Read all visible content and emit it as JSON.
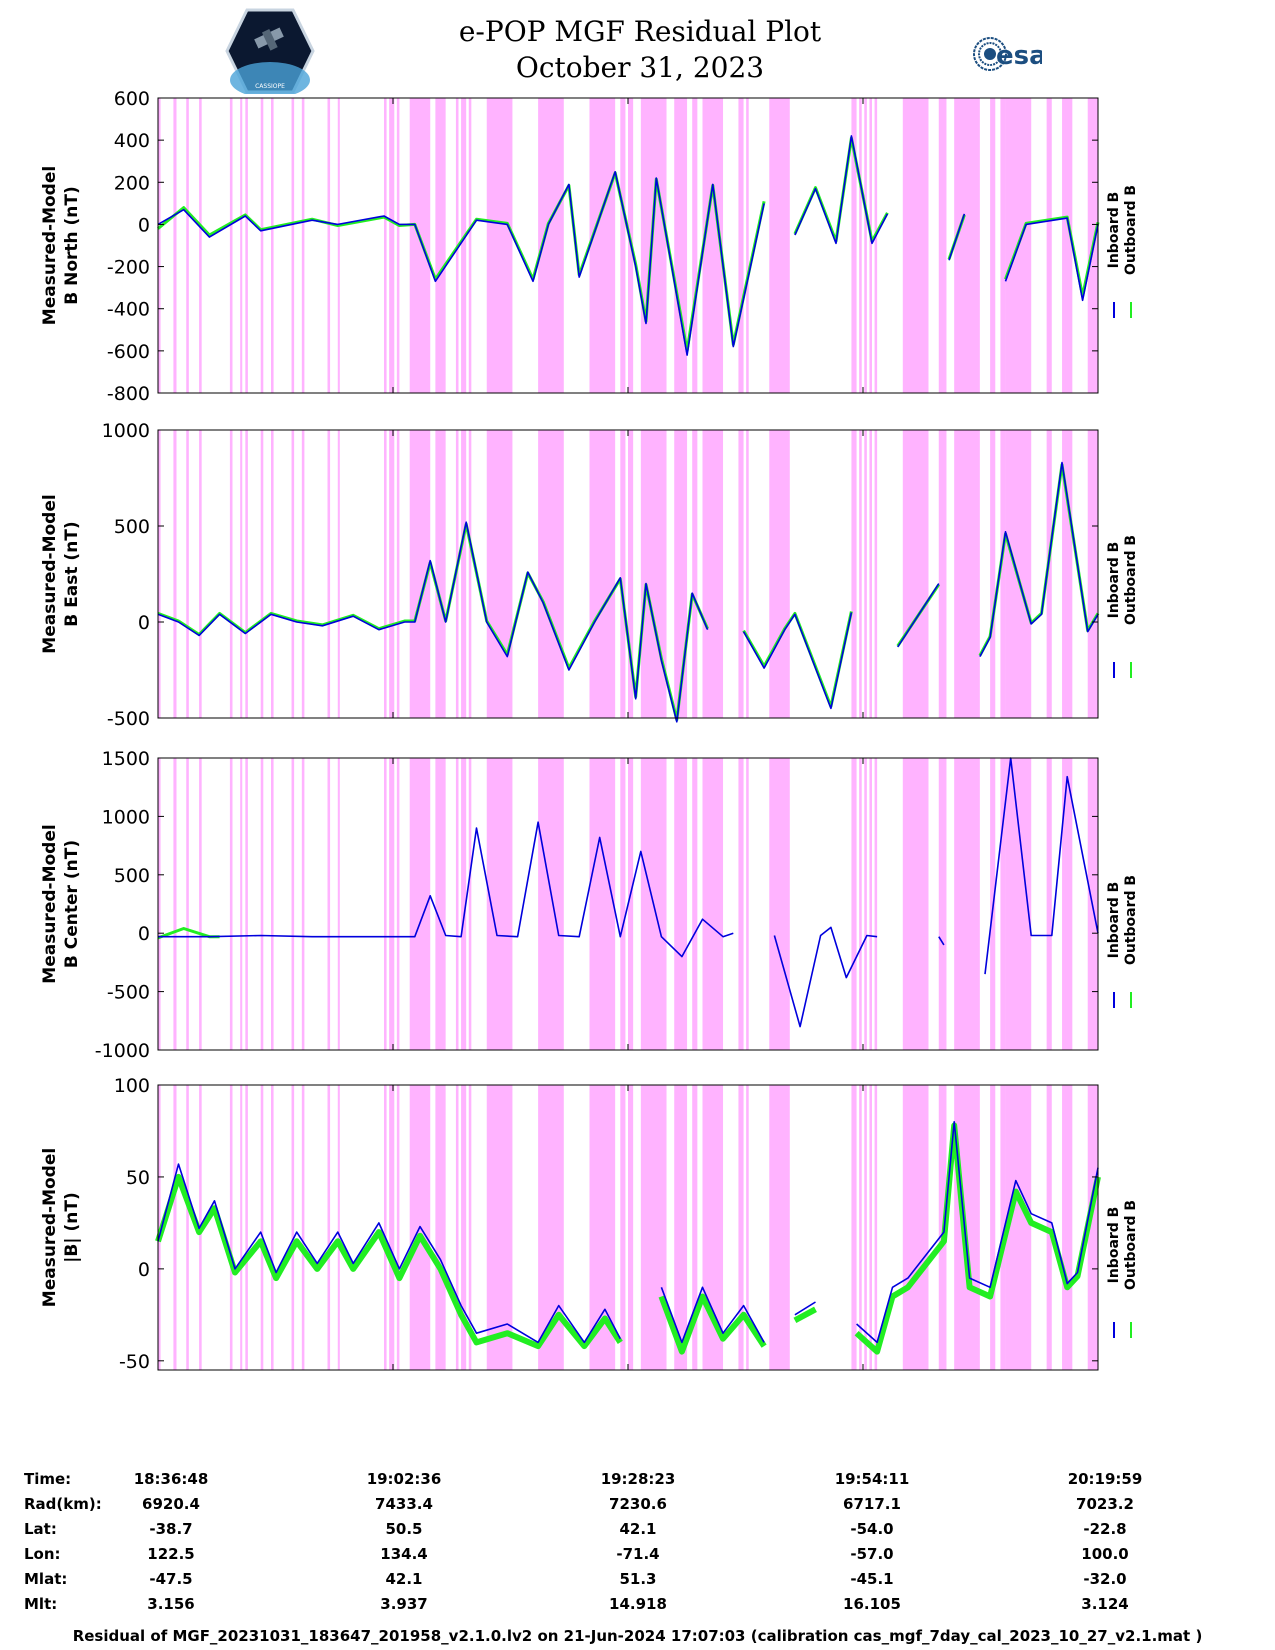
{
  "header": {
    "title": "e-POP MGF Residual Plot",
    "date": "October 31, 2023",
    "logo_left": "CASSIOPE",
    "logo_right": "esa"
  },
  "colors": {
    "inboard": "#0000dd",
    "outboard": "#22ee22",
    "shade": "#ffb3ff"
  },
  "chart_data": [
    {
      "type": "line",
      "ylabel": [
        "Measured-Model",
        "B North (nT)"
      ],
      "ylim": [
        -800,
        600
      ],
      "yticks": [
        -800,
        -600,
        -400,
        -200,
        0,
        200,
        400,
        600
      ],
      "legend": [
        "Inboard B",
        "Outboard B"
      ],
      "series": [
        {
          "name": "Inboard B",
          "x": [
            0,
            5,
            10,
            17,
            20,
            30,
            35,
            44,
            47,
            50,
            54,
            62,
            68,
            73,
            76,
            80,
            82,
            89,
            93,
            95,
            97,
            103,
            108,
            112,
            118,
            122,
            124,
            128,
            132,
            135,
            139,
            142,
            144,
            154,
            157,
            160,
            165,
            169,
            177,
            180,
            183
          ],
          "y": [
            0,
            70,
            -60,
            40,
            -30,
            20,
            0,
            40,
            0,
            0,
            -270,
            20,
            0,
            -270,
            0,
            190,
            -250,
            250,
            -200,
            -470,
            220,
            -620,
            190,
            -580,
            100,
            null,
            -50,
            170,
            -90,
            420,
            -90,
            50,
            null,
            -170,
            50,
            null,
            -270,
            0,
            30,
            -360,
            0
          ]
        },
        {
          "name": "Outboard B",
          "x": [
            0,
            5,
            10,
            17,
            20,
            30,
            35,
            44,
            47,
            50,
            54,
            62,
            68,
            73,
            76,
            80,
            82,
            89,
            93,
            95,
            97,
            103,
            108,
            112,
            118,
            122,
            124,
            128,
            132,
            135,
            139,
            142,
            144,
            154,
            157,
            160,
            165,
            169,
            177,
            180,
            183
          ],
          "y": [
            -20,
            80,
            -50,
            45,
            -25,
            25,
            -5,
            35,
            -5,
            0,
            -260,
            25,
            5,
            -260,
            5,
            185,
            -240,
            245,
            -190,
            -460,
            215,
            -600,
            185,
            -570,
            110,
            null,
            -45,
            175,
            -80,
            410,
            -80,
            55,
            null,
            -165,
            45,
            null,
            -260,
            5,
            35,
            -340,
            10
          ]
        }
      ]
    },
    {
      "type": "line",
      "ylabel": [
        "Measured-Model",
        "B East (nT)"
      ],
      "ylim": [
        -500,
        1000
      ],
      "yticks": [
        -500,
        0,
        500,
        1000
      ],
      "legend": [
        "Inboard B",
        "Outboard B"
      ],
      "series": [
        {
          "name": "Inboard B",
          "x": [
            0,
            4,
            8,
            12,
            17,
            22,
            27,
            32,
            38,
            43,
            48,
            50,
            53,
            56,
            60,
            64,
            68,
            72,
            75,
            80,
            85,
            90,
            93,
            95,
            98,
            101,
            104,
            107,
            109,
            114,
            118,
            122,
            124,
            131,
            135,
            140,
            144,
            152,
            157,
            160,
            162,
            165,
            170,
            172,
            176,
            181,
            183
          ],
          "y": [
            40,
            0,
            -70,
            40,
            -60,
            40,
            0,
            -20,
            30,
            -40,
            0,
            0,
            320,
            0,
            520,
            0,
            -180,
            260,
            100,
            -250,
            0,
            230,
            -400,
            200,
            -200,
            -520,
            150,
            -40,
            null,
            -50,
            -240,
            -40,
            40,
            -450,
            50,
            null,
            -130,
            200,
            null,
            -180,
            -80,
            470,
            -10,
            40,
            830,
            -50,
            40
          ]
        },
        {
          "name": "Outboard B",
          "x": [
            0,
            4,
            8,
            12,
            17,
            22,
            27,
            32,
            38,
            43,
            48,
            50,
            53,
            56,
            60,
            64,
            68,
            72,
            75,
            80,
            85,
            90,
            93,
            95,
            98,
            101,
            104,
            107,
            109,
            114,
            118,
            122,
            124,
            131,
            135,
            140,
            144,
            152,
            157,
            160,
            162,
            165,
            170,
            172,
            176,
            181,
            183
          ],
          "y": [
            45,
            5,
            -65,
            45,
            -55,
            45,
            5,
            -15,
            35,
            -35,
            5,
            5,
            310,
            5,
            510,
            5,
            -170,
            255,
            105,
            -240,
            5,
            225,
            -390,
            195,
            -190,
            -510,
            145,
            -35,
            null,
            -45,
            -230,
            -35,
            45,
            -440,
            55,
            null,
            -125,
            195,
            null,
            -175,
            -75,
            460,
            -5,
            45,
            820,
            -45,
            45
          ]
        }
      ]
    },
    {
      "type": "line",
      "ylabel": [
        "Measured-Model",
        "B Center (nT)"
      ],
      "ylim": [
        -1000,
        1500
      ],
      "yticks": [
        -1000,
        -500,
        0,
        500,
        1000,
        1500
      ],
      "legend": [
        "Inboard B",
        "Outboard B"
      ],
      "series": [
        {
          "name": "Inboard B",
          "x": [
            0,
            10,
            20,
            30,
            40,
            46,
            50,
            53,
            56,
            59,
            62,
            66,
            70,
            74,
            78,
            82,
            86,
            90,
            94,
            98,
            102,
            106,
            110,
            112,
            115,
            120,
            125,
            129,
            131,
            134,
            138,
            140,
            146,
            152,
            153,
            156,
            161,
            166,
            170,
            174,
            177,
            183
          ],
          "y": [
            -30,
            -30,
            -20,
            -30,
            -30,
            -30,
            -30,
            320,
            -20,
            -30,
            900,
            -20,
            -30,
            950,
            -20,
            -30,
            820,
            -30,
            700,
            -30,
            -200,
            120,
            -30,
            0,
            null,
            -20,
            -800,
            -20,
            50,
            -380,
            -20,
            -30,
            null,
            -30,
            -100,
            null,
            -350,
            1500,
            -20,
            -20,
            1340,
            0
          ]
        },
        {
          "name": "Outboard B",
          "x": [
            0,
            5,
            10,
            12
          ],
          "y": [
            -40,
            40,
            -30,
            -30
          ]
        }
      ]
    },
    {
      "type": "line",
      "ylabel": [
        "Measured-Model",
        "|B| (nT)"
      ],
      "ylim": [
        -55,
        100
      ],
      "yticks": [
        -50,
        0,
        50,
        100
      ],
      "legend": [
        "Inboard B",
        "Outboard B"
      ],
      "series": [
        {
          "name": "Inboard B",
          "x": [
            0,
            4,
            8,
            11,
            15,
            20,
            23,
            27,
            31,
            35,
            38,
            43,
            47,
            51,
            55,
            59,
            62,
            68,
            74,
            78,
            83,
            87,
            90,
            94,
            98,
            102,
            106,
            110,
            114,
            118,
            122,
            124,
            128,
            132,
            136,
            140,
            143,
            146,
            153,
            155,
            158,
            162,
            167,
            170,
            174,
            177,
            179,
            183
          ],
          "y": [
            15,
            57,
            22,
            37,
            0,
            20,
            -2,
            20,
            3,
            20,
            3,
            25,
            0,
            23,
            5,
            -20,
            -35,
            -30,
            -40,
            -20,
            -40,
            -22,
            -38,
            null,
            -10,
            -40,
            -10,
            -35,
            -20,
            -40,
            null,
            -25,
            -18,
            null,
            -30,
            -40,
            -10,
            -5,
            20,
            80,
            -5,
            -10,
            48,
            30,
            25,
            -8,
            -2,
            55
          ]
        },
        {
          "name": "Outboard B",
          "x": [
            0,
            4,
            8,
            11,
            15,
            20,
            23,
            27,
            31,
            35,
            38,
            43,
            47,
            51,
            55,
            59,
            62,
            68,
            74,
            78,
            83,
            87,
            90,
            94,
            98,
            102,
            106,
            110,
            114,
            118,
            122,
            124,
            128,
            132,
            136,
            140,
            143,
            146,
            153,
            155,
            158,
            162,
            167,
            170,
            174,
            177,
            179,
            183
          ],
          "y": [
            15,
            50,
            20,
            33,
            -2,
            15,
            -5,
            15,
            0,
            15,
            0,
            20,
            -5,
            18,
            0,
            -25,
            -40,
            -35,
            -42,
            -25,
            -42,
            -27,
            -40,
            null,
            -15,
            -45,
            -15,
            -38,
            -25,
            -42,
            null,
            -28,
            -22,
            null,
            -35,
            -45,
            -15,
            -10,
            15,
            78,
            -10,
            -15,
            42,
            25,
            20,
            -10,
            -4,
            50
          ]
        }
      ]
    }
  ],
  "shade_spans": [
    [
      0,
      0.5
    ],
    [
      3,
      3.6
    ],
    [
      5.5,
      6
    ],
    [
      8,
      8.5
    ],
    [
      14,
      14.5
    ],
    [
      16,
      16.4
    ],
    [
      17,
      17.5
    ],
    [
      20,
      20.5
    ],
    [
      22,
      22.5
    ],
    [
      26,
      26.5
    ],
    [
      28,
      28.5
    ],
    [
      33,
      33.5
    ],
    [
      35,
      35.4
    ],
    [
      44,
      44.5
    ],
    [
      45,
      46
    ],
    [
      46.5,
      47
    ],
    [
      49,
      53
    ],
    [
      54,
      56
    ],
    [
      58,
      58.5
    ],
    [
      59,
      60
    ],
    [
      60.5,
      61
    ],
    [
      64,
      69
    ],
    [
      74,
      79
    ],
    [
      84,
      89
    ],
    [
      90,
      91
    ],
    [
      91.5,
      92.5
    ],
    [
      94,
      99
    ],
    [
      100.5,
      103
    ],
    [
      104,
      105
    ],
    [
      106,
      110
    ],
    [
      113,
      114
    ],
    [
      114.5,
      115
    ],
    [
      119,
      123
    ],
    [
      135,
      136
    ],
    [
      136.5,
      137
    ],
    [
      137.5,
      138
    ],
    [
      138.5,
      139
    ],
    [
      139.5,
      140
    ],
    [
      145,
      150
    ],
    [
      152,
      153.5
    ],
    [
      155,
      160
    ],
    [
      162,
      163
    ],
    [
      164,
      165
    ],
    [
      165,
      170
    ],
    [
      173,
      174
    ],
    [
      176,
      178
    ],
    [
      181,
      183
    ]
  ],
  "ephemeris": {
    "labels": [
      "Time:",
      "Rad(km):",
      "Lat:",
      "Lon:",
      "Mlat:",
      "Mlt:"
    ],
    "columns": [
      [
        "18:36:48",
        "6920.4",
        "-38.7",
        "122.5",
        "-47.5",
        "3.156"
      ],
      [
        "19:02:36",
        "7433.4",
        "50.5",
        "134.4",
        "42.1",
        "3.937"
      ],
      [
        "19:28:23",
        "7230.6",
        "42.1",
        "-71.4",
        "51.3",
        "14.918"
      ],
      [
        "19:54:11",
        "6717.1",
        "-54.0",
        "-57.0",
        "-45.1",
        "16.105"
      ],
      [
        "20:19:59",
        "7023.2",
        "-22.8",
        "100.0",
        "-32.0",
        "3.124"
      ]
    ]
  },
  "footer": "Residual of MGF_20231031_183647_201958_v2.1.0.lv2 on 21-Jun-2024 17:07:03 (calibration cas_mgf_7day_cal_2023_10_27_v2.1.mat )"
}
